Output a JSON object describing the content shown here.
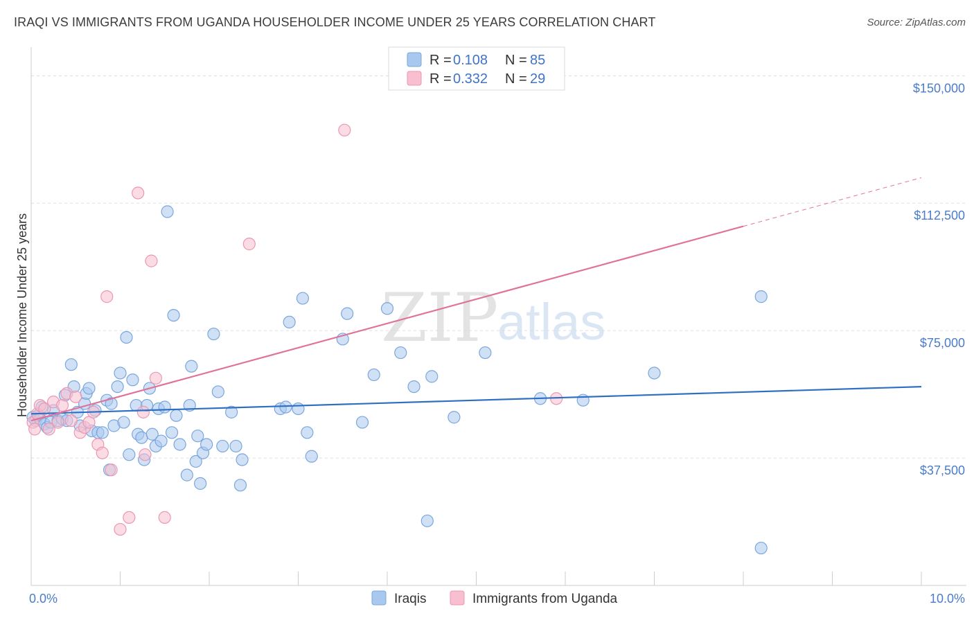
{
  "header": {
    "title": "IRAQI VS IMMIGRANTS FROM UGANDA HOUSEHOLDER INCOME UNDER 25 YEARS CORRELATION CHART",
    "source": "Source: ZipAtlas.com"
  },
  "watermark": {
    "zip": "ZIP",
    "atlas": "atlas"
  },
  "legend": {
    "rows": [
      {
        "r_label": "R = ",
        "r_value": "0.108",
        "n_label": "N = ",
        "n_value": "85",
        "color": "#a9c8ef",
        "stroke": "#7aa6de"
      },
      {
        "r_label": "R = ",
        "r_value": "0.332",
        "n_label": "N = ",
        "n_value": "29",
        "color": "#f7bfd0",
        "stroke": "#ec97b2"
      }
    ]
  },
  "bottom_legend": [
    {
      "label": "Iraqis",
      "color": "#a9c8ef",
      "stroke": "#7aa6de"
    },
    {
      "label": "Immigrants from Uganda",
      "color": "#f7bfd0",
      "stroke": "#ec97b2"
    }
  ],
  "chart_data": {
    "type": "scatter",
    "title": "IRAQI VS IMMIGRANTS FROM UGANDA HOUSEHOLDER INCOME UNDER 25 YEARS CORRELATION CHART",
    "xlabel": "",
    "ylabel": "Householder Income Under 25 years",
    "xlim": [
      0,
      10
    ],
    "ylim": [
      0,
      157000
    ],
    "x_ticks": [
      0,
      10
    ],
    "x_tick_labels": [
      "0.0%",
      "10.0%"
    ],
    "y_ticks": [
      37500,
      75000,
      112500,
      150000
    ],
    "y_tick_labels": [
      "$37,500",
      "$75,000",
      "$112,500",
      "$150,000"
    ],
    "grid": true,
    "series": [
      {
        "name": "Iraqis",
        "color": "#a9c8ef",
        "stroke": "#7aa6de",
        "trend_color": "#2f6fc3",
        "trend": {
          "x0": 0,
          "y0": 50500,
          "x1": 10,
          "y1": 58500,
          "solid_until": 10
        },
        "points": [
          [
            0.02,
            49500
          ],
          [
            0.05,
            48500
          ],
          [
            0.08,
            50000
          ],
          [
            0.1,
            49000
          ],
          [
            0.12,
            52500
          ],
          [
            0.15,
            47500
          ],
          [
            0.18,
            46500
          ],
          [
            0.22,
            48000
          ],
          [
            0.25,
            51500
          ],
          [
            0.3,
            48500
          ],
          [
            0.35,
            49000
          ],
          [
            0.38,
            56000
          ],
          [
            0.4,
            48500
          ],
          [
            0.45,
            65000
          ],
          [
            0.48,
            58500
          ],
          [
            0.52,
            51000
          ],
          [
            0.55,
            47000
          ],
          [
            0.6,
            53500
          ],
          [
            0.62,
            56500
          ],
          [
            0.65,
            58000
          ],
          [
            0.68,
            45500
          ],
          [
            0.72,
            51500
          ],
          [
            0.75,
            45000
          ],
          [
            0.8,
            45000
          ],
          [
            0.85,
            54500
          ],
          [
            0.88,
            34000
          ],
          [
            0.9,
            53500
          ],
          [
            0.93,
            47000
          ],
          [
            0.97,
            58500
          ],
          [
            1.0,
            62500
          ],
          [
            1.04,
            48000
          ],
          [
            1.07,
            73000
          ],
          [
            1.1,
            38500
          ],
          [
            1.14,
            60500
          ],
          [
            1.18,
            53000
          ],
          [
            1.2,
            44500
          ],
          [
            1.24,
            43500
          ],
          [
            1.27,
            37000
          ],
          [
            1.3,
            53000
          ],
          [
            1.33,
            58000
          ],
          [
            1.36,
            44500
          ],
          [
            1.4,
            41000
          ],
          [
            1.43,
            52000
          ],
          [
            1.46,
            42500
          ],
          [
            1.5,
            52500
          ],
          [
            1.53,
            110000
          ],
          [
            1.58,
            45000
          ],
          [
            1.6,
            79500
          ],
          [
            1.63,
            50000
          ],
          [
            1.67,
            41500
          ],
          [
            1.75,
            32500
          ],
          [
            1.78,
            53000
          ],
          [
            1.8,
            64500
          ],
          [
            1.85,
            36500
          ],
          [
            1.87,
            44000
          ],
          [
            1.9,
            30000
          ],
          [
            1.93,
            39000
          ],
          [
            1.97,
            41500
          ],
          [
            2.05,
            74000
          ],
          [
            2.1,
            57000
          ],
          [
            2.15,
            41000
          ],
          [
            2.25,
            51000
          ],
          [
            2.3,
            41000
          ],
          [
            2.35,
            29500
          ],
          [
            2.37,
            37000
          ],
          [
            2.8,
            52000
          ],
          [
            2.86,
            52500
          ],
          [
            2.9,
            77500
          ],
          [
            3.0,
            52000
          ],
          [
            3.05,
            84500
          ],
          [
            3.1,
            45000
          ],
          [
            3.15,
            38000
          ],
          [
            3.5,
            72500
          ],
          [
            3.55,
            80000
          ],
          [
            3.72,
            48000
          ],
          [
            3.85,
            62000
          ],
          [
            4.0,
            81500
          ],
          [
            4.15,
            68500
          ],
          [
            4.3,
            58500
          ],
          [
            4.45,
            19000
          ],
          [
            4.5,
            61500
          ],
          [
            4.75,
            49500
          ],
          [
            5.1,
            68500
          ],
          [
            5.72,
            55000
          ],
          [
            6.2,
            54500
          ],
          [
            7.0,
            62500
          ],
          [
            8.2,
            85000
          ],
          [
            8.2,
            11000
          ]
        ]
      },
      {
        "name": "Immigrants from Uganda",
        "color": "#f7bfd0",
        "stroke": "#ec97b2",
        "trend_color": "#e0739b",
        "trend": {
          "x0": 0,
          "y0": 48500,
          "x1": 10,
          "y1": 120000,
          "solid_until": 8.0
        },
        "points": [
          [
            0.02,
            48000
          ],
          [
            0.04,
            46000
          ],
          [
            0.07,
            50500
          ],
          [
            0.1,
            53000
          ],
          [
            0.15,
            52000
          ],
          [
            0.2,
            46000
          ],
          [
            0.25,
            54000
          ],
          [
            0.3,
            48000
          ],
          [
            0.35,
            53000
          ],
          [
            0.4,
            56500
          ],
          [
            0.45,
            48500
          ],
          [
            0.5,
            55500
          ],
          [
            0.55,
            45000
          ],
          [
            0.6,
            46500
          ],
          [
            0.65,
            48000
          ],
          [
            0.7,
            51000
          ],
          [
            0.75,
            41500
          ],
          [
            0.8,
            39000
          ],
          [
            0.85,
            85000
          ],
          [
            0.9,
            34000
          ],
          [
            1.0,
            16500
          ],
          [
            1.1,
            20000
          ],
          [
            1.2,
            115500
          ],
          [
            1.26,
            51000
          ],
          [
            1.28,
            38500
          ],
          [
            1.35,
            95500
          ],
          [
            1.4,
            61000
          ],
          [
            1.5,
            20000
          ],
          [
            2.45,
            100500
          ],
          [
            3.52,
            134000
          ],
          [
            5.9,
            55000
          ]
        ]
      }
    ]
  }
}
